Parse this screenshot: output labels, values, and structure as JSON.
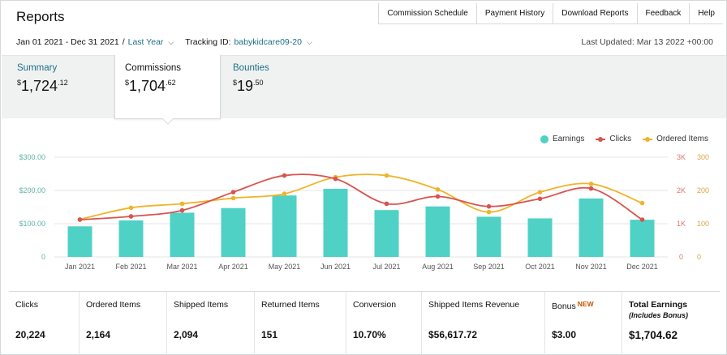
{
  "header": {
    "title": "Reports",
    "links": [
      "Commission Schedule",
      "Payment History",
      "Download Reports",
      "Feedback",
      "Help"
    ]
  },
  "filters": {
    "date_range": "Jan 01 2021 - Dec 31 2021",
    "separator": "/",
    "period": "Last Year",
    "tracking_label": "Tracking ID:",
    "tracking_id": "babykidcare09-20",
    "last_updated": "Last Updated: Mar 13 2022 +00:00"
  },
  "tiles": [
    {
      "label": "Summary",
      "currency": "$",
      "whole": "1,724",
      "cents": ".12"
    },
    {
      "label": "Commissions",
      "currency": "$",
      "whole": "1,704",
      "cents": ".62"
    },
    {
      "label": "Bounties",
      "currency": "$",
      "whole": "19",
      "cents": ".50"
    }
  ],
  "legend": {
    "earnings": "Earnings",
    "clicks": "Clicks",
    "ordered": "Ordered Items"
  },
  "colors": {
    "earnings": "#4fd1c5",
    "clicks": "#d9534f",
    "ordered": "#f0b429",
    "teal_text": "#1d6f87",
    "new_badge": "#c45500"
  },
  "chart_data": {
    "type": "bar",
    "categories": [
      "Jan 2021",
      "Feb 2021",
      "Mar 2021",
      "Apr 2021",
      "May 2021",
      "Jun 2021",
      "Jul 2021",
      "Aug 2021",
      "Sep 2021",
      "Oct 2021",
      "Nov 2021",
      "Dec 2021"
    ],
    "series": [
      {
        "name": "Earnings",
        "type": "bar",
        "axis": "left",
        "values": [
          92,
          110,
          133,
          147,
          185,
          205,
          141,
          152,
          121,
          116,
          176,
          112
        ]
      },
      {
        "name": "Clicks",
        "type": "line",
        "axis": "right",
        "values": [
          1120,
          1220,
          1400,
          1950,
          2450,
          2350,
          1600,
          1820,
          1520,
          1750,
          2060,
          1120
        ]
      },
      {
        "name": "Ordered Items",
        "type": "line",
        "axis": "right",
        "values": [
          1130,
          1480,
          1600,
          1770,
          1900,
          2400,
          2450,
          2030,
          1350,
          1950,
          2200,
          1620
        ]
      }
    ],
    "left_axis": {
      "ticks": [
        "0",
        "$100.00",
        "$200.00",
        "$300.00"
      ],
      "range": [
        0,
        300
      ]
    },
    "right_axis": {
      "ticks_outer": [
        "0",
        "100",
        "200",
        "300"
      ],
      "ticks_inner": [
        "1K",
        "2K",
        "3K"
      ],
      "range": [
        0,
        3000
      ]
    },
    "grid": true
  },
  "metrics": [
    {
      "label": "Clicks",
      "value": "20,224"
    },
    {
      "label": "Ordered Items",
      "value": "2,164"
    },
    {
      "label": "Shipped Items",
      "value": "2,094"
    },
    {
      "label": "Returned Items",
      "value": "151"
    },
    {
      "label": "Conversion",
      "value": "10.70%"
    },
    {
      "label": "Shipped Items Revenue",
      "value": "$56,617.72"
    },
    {
      "label": "Bonus",
      "badge": "NEW",
      "value": "$3.00"
    },
    {
      "label": "Total Earnings",
      "sub": "(Includes Bonus)",
      "value": "$1,704.62"
    }
  ]
}
